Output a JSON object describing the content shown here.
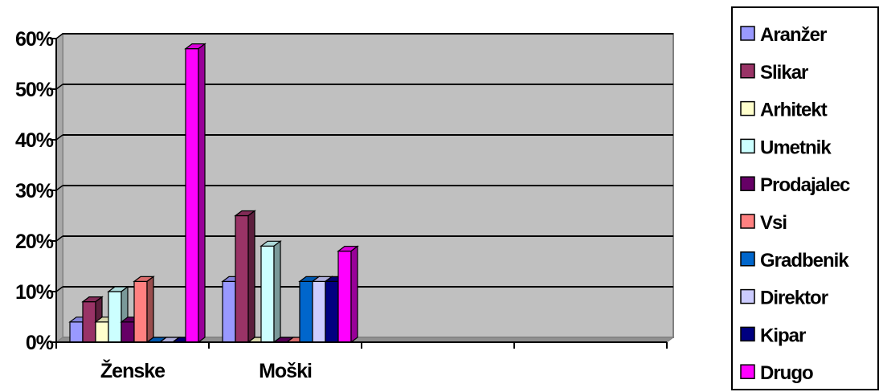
{
  "chart_data": {
    "type": "bar",
    "categories": [
      "Ženske",
      "Moški",
      "",
      ""
    ],
    "ylim": [
      0,
      60
    ],
    "y_ticks": [
      0,
      10,
      20,
      30,
      40,
      50,
      60
    ],
    "y_tick_labels": [
      "0%",
      "10%",
      "20%",
      "30%",
      "40%",
      "50%",
      "60%"
    ],
    "grid": true,
    "legend_position": "right",
    "plot_background": "#c0c0c0",
    "series": [
      {
        "name": "Aranžer",
        "color": "#9999ff",
        "values": [
          4,
          12,
          null,
          null
        ]
      },
      {
        "name": "Slikar",
        "color": "#993366",
        "values": [
          8,
          25,
          null,
          null
        ]
      },
      {
        "name": "Arhitekt",
        "color": "#ffffcc",
        "values": [
          4,
          0,
          null,
          null
        ]
      },
      {
        "name": "Umetnik",
        "color": "#ccffff",
        "values": [
          10,
          19,
          null,
          null
        ]
      },
      {
        "name": "Prodajalec",
        "color": "#660066",
        "values": [
          4,
          0,
          null,
          null
        ]
      },
      {
        "name": "Vsi",
        "color": "#ff8080",
        "values": [
          12,
          0,
          null,
          null
        ]
      },
      {
        "name": "Gradbenik",
        "color": "#0066cc",
        "values": [
          0,
          12,
          null,
          null
        ]
      },
      {
        "name": "Direktor",
        "color": "#ccccff",
        "values": [
          0,
          12,
          null,
          null
        ]
      },
      {
        "name": "Kipar",
        "color": "#000080",
        "values": [
          0,
          12,
          null,
          null
        ]
      },
      {
        "name": "Drugo",
        "color": "#ff00ff",
        "values": [
          58,
          18,
          null,
          null
        ]
      }
    ]
  }
}
